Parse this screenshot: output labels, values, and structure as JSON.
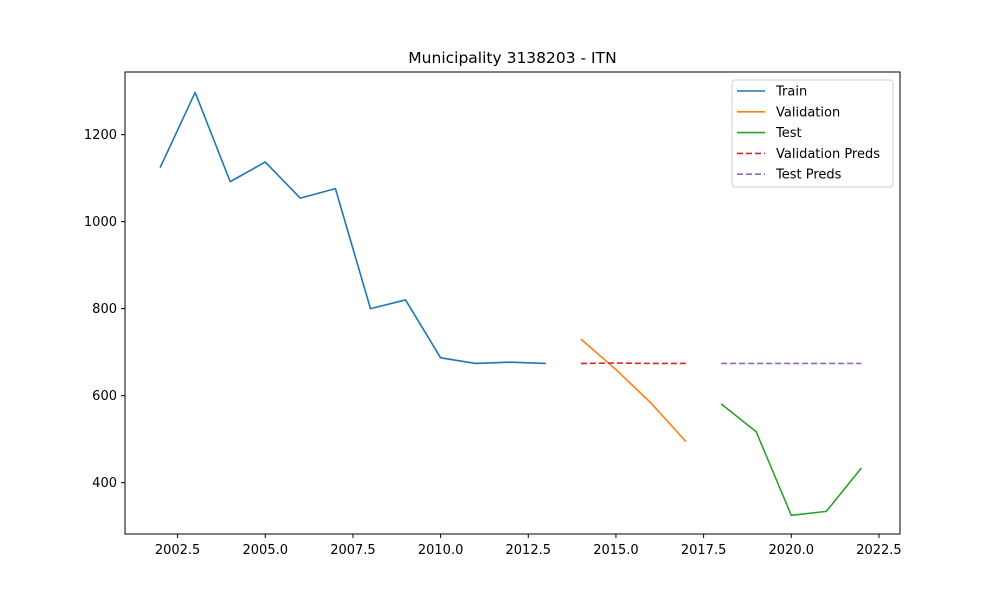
{
  "chart_data": {
    "type": "line",
    "title": "Municipality 3138203 - ITN",
    "xlabel": "",
    "ylabel": "",
    "xlim": [
      2001.0,
      2023.1
    ],
    "ylim": [
      282,
      1344
    ],
    "x_ticks": [
      2002.5,
      2005.0,
      2007.5,
      2010.0,
      2012.5,
      2015.0,
      2017.5,
      2020.0,
      2022.5
    ],
    "x_tick_labels": [
      "2002.5",
      "2005.0",
      "2007.5",
      "2010.0",
      "2012.5",
      "2015.0",
      "2017.5",
      "2020.0",
      "2022.5"
    ],
    "y_ticks": [
      400,
      600,
      800,
      1000,
      1200
    ],
    "y_tick_labels": [
      "400",
      "600",
      "800",
      "1000",
      "1200"
    ],
    "grid": false,
    "legend_position": "top-right",
    "series": [
      {
        "name": "Train",
        "color": "#1f77b4",
        "dashed": false,
        "x": [
          2002,
          2003,
          2004,
          2005,
          2006,
          2007,
          2008,
          2009,
          2010,
          2011,
          2012,
          2013
        ],
        "y": [
          1124,
          1297,
          1092,
          1137,
          1054,
          1076,
          800,
          820,
          687,
          674,
          677,
          674
        ]
      },
      {
        "name": "Validation",
        "color": "#ff7f0e",
        "dashed": false,
        "x": [
          2014,
          2015,
          2016,
          2017
        ],
        "y": [
          730,
          660,
          583,
          494
        ]
      },
      {
        "name": "Test",
        "color": "#2ca02c",
        "dashed": false,
        "x": [
          2018,
          2019,
          2020,
          2021,
          2022
        ],
        "y": [
          581,
          517,
          325,
          334,
          434
        ]
      },
      {
        "name": "Validation Preds",
        "color": "#d62728",
        "dashed": true,
        "x": [
          2014,
          2015,
          2016,
          2017
        ],
        "y": [
          674,
          675,
          674,
          674
        ]
      },
      {
        "name": "Test Preds",
        "color": "#9467bd",
        "dashed": true,
        "x": [
          2018,
          2019,
          2020,
          2021,
          2022
        ],
        "y": [
          674,
          674,
          674,
          674,
          674
        ]
      }
    ]
  }
}
